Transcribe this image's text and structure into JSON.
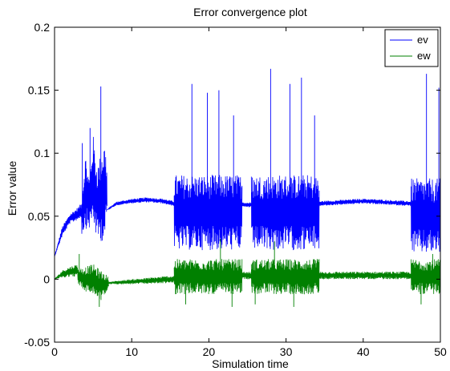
{
  "chart_data": {
    "type": "line",
    "title": "Error convergence plot",
    "xlabel": "Simulation time",
    "ylabel": "Error value",
    "xlim": [
      0,
      50
    ],
    "ylim": [
      -0.05,
      0.2
    ],
    "xticks": [
      0,
      10,
      20,
      30,
      40,
      50
    ],
    "yticks": [
      -0.05,
      0,
      0.05,
      0.1,
      0.15,
      0.2
    ],
    "xtick_labels": [
      "0",
      "10",
      "20",
      "30",
      "40",
      "50"
    ],
    "ytick_labels": [
      "-0.05",
      "0",
      "0.05",
      "0.1",
      "0.15",
      "0.2"
    ],
    "grid": false,
    "legend_position": "top-right",
    "series": [
      {
        "name": "ev",
        "color": "#0000ff",
        "segments": [
          {
            "x": [
              0,
              1,
              2,
              3,
              3.5
            ],
            "center": [
              0.018,
              0.038,
              0.048,
              0.052,
              0.055
            ],
            "half_range": [
              0.0,
              0.004,
              0.004,
              0.005,
              0.006
            ],
            "spikes": []
          },
          {
            "x": [
              3.5,
              4,
              4.5,
              5,
              5.5,
              6,
              6.5,
              6.8
            ],
            "center": [
              0.05,
              0.07,
              0.06,
              0.08,
              0.06,
              0.065,
              0.07,
              0.07
            ],
            "half_range": [
              0.015,
              0.03,
              0.02,
              0.035,
              0.03,
              0.035,
              0.04,
              0.02
            ],
            "spikes": [
              {
                "x": 6.0,
                "y": 0.153
              },
              {
                "x": 4.6,
                "y": 0.12
              },
              {
                "x": 3.6,
                "y": 0.108
              }
            ]
          },
          {
            "x": [
              6.8,
              8,
              10,
              12,
              14,
              15.5
            ],
            "center": [
              0.055,
              0.06,
              0.062,
              0.063,
              0.062,
              0.06
            ],
            "half_range": [
              0.0,
              0.0015,
              0.0018,
              0.002,
              0.002,
              0.002
            ],
            "spikes": []
          },
          {
            "x": [
              15.5,
              20,
              24.3
            ],
            "center": [
              0.053,
              0.053,
              0.053
            ],
            "half_range": [
              0.03,
              0.03,
              0.03
            ],
            "spikes": [
              {
                "x": 17.8,
                "y": 0.155
              },
              {
                "x": 19.8,
                "y": 0.148
              },
              {
                "x": 21.3,
                "y": 0.15
              },
              {
                "x": 23.2,
                "y": 0.13
              }
            ]
          },
          {
            "x": [
              24.3,
              25.5
            ],
            "center": [
              0.059,
              0.059
            ],
            "half_range": [
              0.002,
              0.002
            ],
            "spikes": []
          },
          {
            "x": [
              25.5,
              30,
              34.3
            ],
            "center": [
              0.053,
              0.053,
              0.053
            ],
            "half_range": [
              0.03,
              0.03,
              0.03
            ],
            "spikes": [
              {
                "x": 28.0,
                "y": 0.167
              },
              {
                "x": 30.5,
                "y": 0.155
              },
              {
                "x": 32.0,
                "y": 0.16
              },
              {
                "x": 33.7,
                "y": 0.13
              }
            ]
          },
          {
            "x": [
              34.3,
              40,
              46.2
            ],
            "center": [
              0.06,
              0.062,
              0.06
            ],
            "half_range": [
              0.002,
              0.002,
              0.002
            ],
            "spikes": []
          },
          {
            "x": [
              46.2,
              50
            ],
            "center": [
              0.05,
              0.05
            ],
            "half_range": [
              0.03,
              0.03
            ],
            "spikes": [
              {
                "x": 48.2,
                "y": 0.163
              },
              {
                "x": 49.8,
                "y": 0.152
              }
            ]
          }
        ]
      },
      {
        "name": "ew",
        "color": "#008000",
        "segments": [
          {
            "x": [
              0,
              1,
              2,
              3
            ],
            "center": [
              0.0,
              0.004,
              0.006,
              0.007
            ],
            "half_range": [
              0.0,
              0.003,
              0.004,
              0.005
            ],
            "spikes": []
          },
          {
            "x": [
              3,
              4,
              5,
              6,
              7
            ],
            "center": [
              0.002,
              0.0,
              0.0,
              -0.005,
              -0.003
            ],
            "half_range": [
              0.006,
              0.01,
              0.012,
              0.012,
              0.005
            ],
            "spikes": [
              {
                "x": 5.8,
                "y": -0.022
              },
              {
                "x": 3.2,
                "y": 0.02
              }
            ]
          },
          {
            "x": [
              7,
              10,
              15.5
            ],
            "center": [
              -0.003,
              -0.002,
              0.0
            ],
            "half_range": [
              0.001,
              0.002,
              0.003
            ],
            "spikes": []
          },
          {
            "x": [
              15.5,
              20,
              24.3
            ],
            "center": [
              0.002,
              0.002,
              0.002
            ],
            "half_range": [
              0.014,
              0.014,
              0.014
            ],
            "spikes": [
              {
                "x": 17.0,
                "y": -0.02
              },
              {
                "x": 21.5,
                "y": 0.032
              },
              {
                "x": 23.0,
                "y": -0.022
              }
            ]
          },
          {
            "x": [
              24.3,
              25.5
            ],
            "center": [
              0.003,
              0.003
            ],
            "half_range": [
              0.003,
              0.003
            ],
            "spikes": []
          },
          {
            "x": [
              25.5,
              30,
              34.3
            ],
            "center": [
              0.002,
              0.002,
              0.002
            ],
            "half_range": [
              0.014,
              0.014,
              0.014
            ],
            "spikes": [
              {
                "x": 28.5,
                "y": 0.03
              },
              {
                "x": 31.0,
                "y": -0.022
              },
              {
                "x": 26.0,
                "y": -0.02
              }
            ]
          },
          {
            "x": [
              34.3,
              40,
              46.2
            ],
            "center": [
              0.003,
              0.003,
              0.003
            ],
            "half_range": [
              0.003,
              0.003,
              0.003
            ],
            "spikes": []
          },
          {
            "x": [
              46.2,
              50
            ],
            "center": [
              0.002,
              0.002
            ],
            "half_range": [
              0.014,
              0.014
            ],
            "spikes": [
              {
                "x": 47.5,
                "y": -0.02
              },
              {
                "x": 49.0,
                "y": 0.02
              }
            ]
          }
        ]
      }
    ]
  }
}
